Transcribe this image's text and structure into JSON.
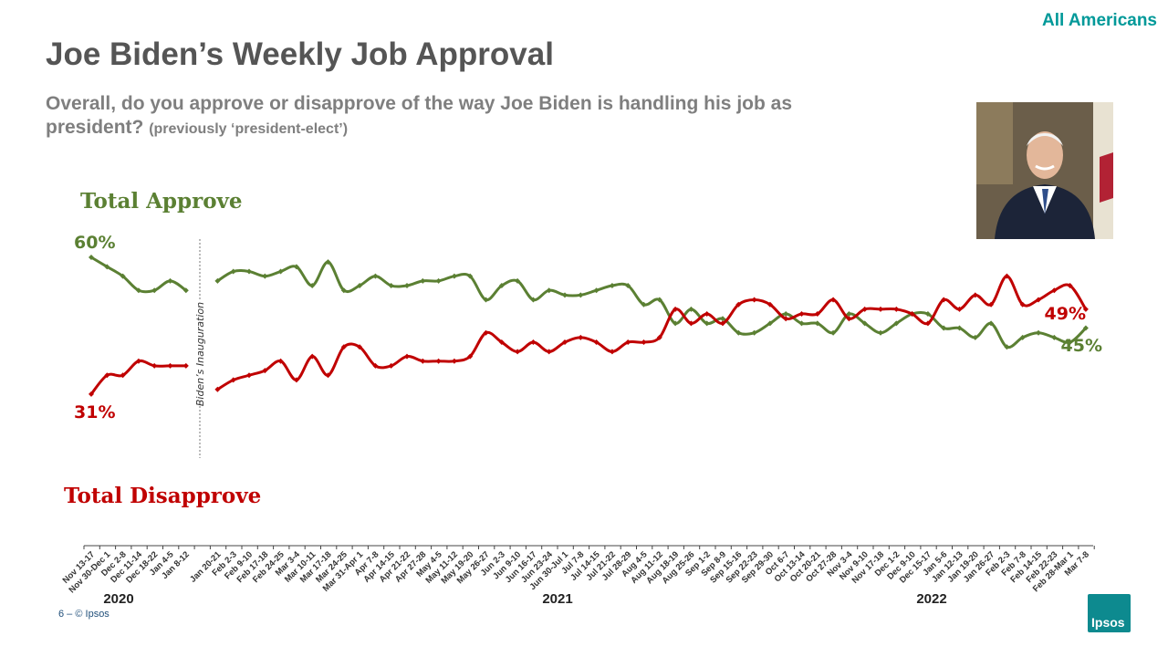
{
  "header": {
    "title": "Joe Biden’s Weekly Job Approval",
    "tag": "All Americans",
    "question": "Overall, do you approve or disapprove of the way Joe Biden is handling his job as president?",
    "question_note": "(previously ‘president-elect’)"
  },
  "footer": {
    "page": "6 –",
    "copyright": "© Ipsos",
    "logo": "Ipsos"
  },
  "colors": {
    "approve": "#5b8033",
    "disapprove": "#c00000",
    "accent": "#009999"
  },
  "chart_data": {
    "type": "line",
    "title": "Joe Biden’s Weekly Job Approval",
    "ylim": [
      20,
      70
    ],
    "annotation": "Biden’s Inauguration",
    "years": [
      "2020",
      "2021",
      "2022"
    ],
    "labels": {
      "approve_start": "60%",
      "disapprove_start": "31%",
      "approve_end": "45%",
      "disapprove_end": "49%"
    },
    "categories": [
      "Nov 13-17",
      "Nov 30-Dec 1",
      "Dec 2-8",
      "Dec 11-14",
      "Dec 18-22",
      "Jan 4-5",
      "Jan 8-12",
      "Jan 20-21",
      "Feb 2-3",
      "Feb 9-10",
      "Feb 17-18",
      "Feb 24-25",
      "Mar 3-4",
      "Mar 10-11",
      "Mar 17-18",
      "Mar 24-25",
      "Mar 31-Apr 1",
      "Apr 7-8",
      "Apr 14-15",
      "Apr 21-22",
      "Apr 27-28",
      "May 4-5",
      "May 11-12",
      "May 19-20",
      "May 26-27",
      "Jun 2-3",
      "Jun 9-10",
      "Jun 16-17",
      "Jun 23-24",
      "Jun 30-Jul 1",
      "Jul 7-8",
      "Jul 14-15",
      "Jul 21-22",
      "Jul 28-29",
      "Aug 4-5",
      "Aug 11-12",
      "Aug 18-19",
      "Aug 25-26",
      "Sep 1-2",
      "Sep 8-9",
      "Sep 15-16",
      "Sep 22-23",
      "Sep 29-30",
      "Oct 6-7",
      "Oct 13-14",
      "Oct 20-21",
      "Oct 27-28",
      "Nov 3-4",
      "Nov 9-10",
      "Nov 17-18",
      "Dec 1-2",
      "Dec 9-10",
      "Dec 15-17",
      "Jan 5-6",
      "Jan 12-13",
      "Jan 19-20",
      "Jan 26-27",
      "Feb 2-3",
      "Feb 7-8",
      "Feb 14-15",
      "Feb 22-23",
      "Feb 28-Mar 1",
      "Mar 7-8"
    ],
    "series": [
      {
        "name": "Total Approve",
        "values": [
          60,
          58,
          56,
          53,
          53,
          55,
          53,
          55,
          57,
          57,
          56,
          57,
          58,
          54,
          59,
          53,
          54,
          56,
          54,
          54,
          55,
          55,
          56,
          56,
          51,
          54,
          55,
          51,
          53,
          52,
          52,
          53,
          54,
          54,
          50,
          51,
          46,
          49,
          46,
          47,
          44,
          44,
          46,
          48,
          46,
          46,
          44,
          48,
          46,
          44,
          46,
          48,
          48,
          45,
          45,
          43,
          46,
          41,
          43,
          44,
          43,
          42,
          45
        ]
      },
      {
        "name": "Total Disapprove",
        "values": [
          31,
          35,
          35,
          38,
          37,
          37,
          37,
          32,
          34,
          35,
          36,
          38,
          34,
          39,
          35,
          41,
          41,
          37,
          37,
          39,
          38,
          38,
          38,
          39,
          44,
          42,
          40,
          42,
          40,
          42,
          43,
          42,
          40,
          42,
          42,
          43,
          49,
          46,
          48,
          46,
          50,
          51,
          50,
          47,
          48,
          48,
          51,
          47,
          49,
          49,
          49,
          48,
          46,
          51,
          49,
          52,
          50,
          56,
          50,
          51,
          53,
          54,
          49
        ]
      }
    ]
  }
}
